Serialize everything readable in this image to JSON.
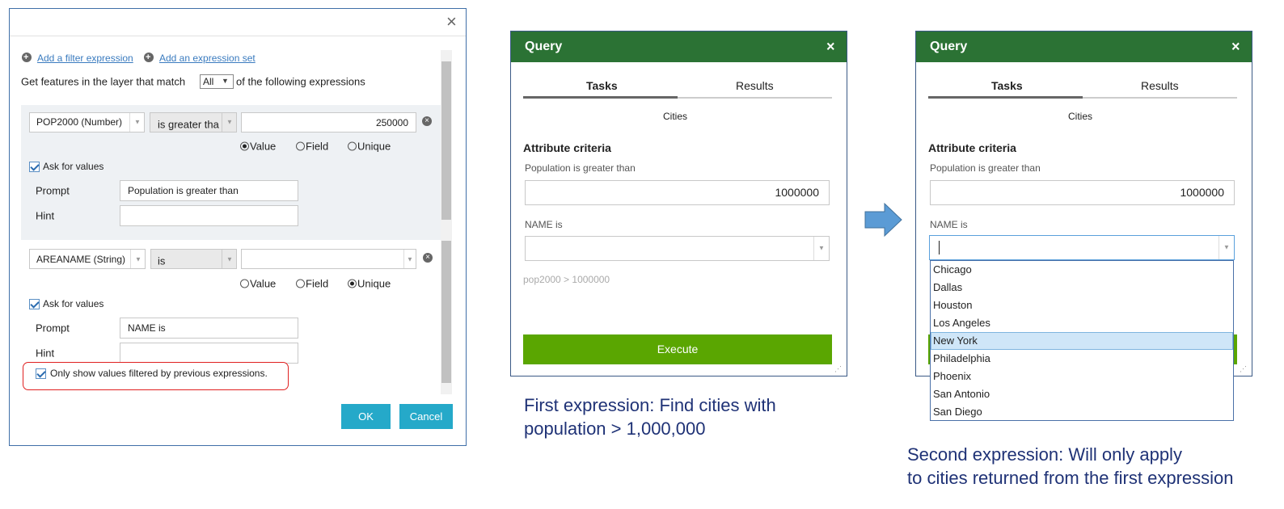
{
  "filter_dialog": {
    "add_filter_expression": "Add a filter expression",
    "add_expression_set": "Add an expression set",
    "match_prefix": "Get features in the layer that match",
    "match_value": "All",
    "match_suffix": "of the following expressions",
    "expressions": [
      {
        "field": "POP2000 (Number)",
        "operator": "is greater tha",
        "value": "250000",
        "options": [
          "Value",
          "Field",
          "Unique"
        ],
        "selected_option": 0,
        "ask_for_values": "Ask for values",
        "prompt_label": "Prompt",
        "prompt": "Population is greater than",
        "hint_label": "Hint"
      },
      {
        "field": "AREANAME (String)",
        "operator": "is",
        "options": [
          "Value",
          "Field",
          "Unique"
        ],
        "selected_option": 2,
        "ask_for_values": "Ask for values",
        "prompt_label": "Prompt",
        "prompt": "NAME is",
        "hint_label": "Hint"
      }
    ],
    "only_show": "Only show values filtered by previous expressions.",
    "ok": "OK",
    "cancel": "Cancel"
  },
  "query_panels": [
    {
      "title": "Query",
      "tabs": [
        "Tasks",
        "Results"
      ],
      "layer": "Cities",
      "section": "Attribute criteria",
      "fields": [
        {
          "label": "Population is greater than",
          "value": "1000000"
        },
        {
          "label": "NAME is"
        }
      ],
      "expression": "pop2000 > 1000000",
      "execute": "Execute"
    },
    {
      "title": "Query",
      "tabs": [
        "Tasks",
        "Results"
      ],
      "layer": "Cities",
      "section": "Attribute criteria",
      "fields": [
        {
          "label": "Population is greater than",
          "value": "1000000"
        },
        {
          "label": "NAME is",
          "options": [
            "Chicago",
            "Dallas",
            "Houston",
            "Los Angeles",
            "New York",
            "Philadelphia",
            "Phoenix",
            "San Antonio",
            "San Diego"
          ],
          "selected_index": 4
        }
      ]
    }
  ],
  "captions": [
    [
      "First expression: Find cities with",
      "population > 1,000,000"
    ],
    [
      "Second expression: Will only apply",
      "to cities returned from the first expression"
    ]
  ]
}
